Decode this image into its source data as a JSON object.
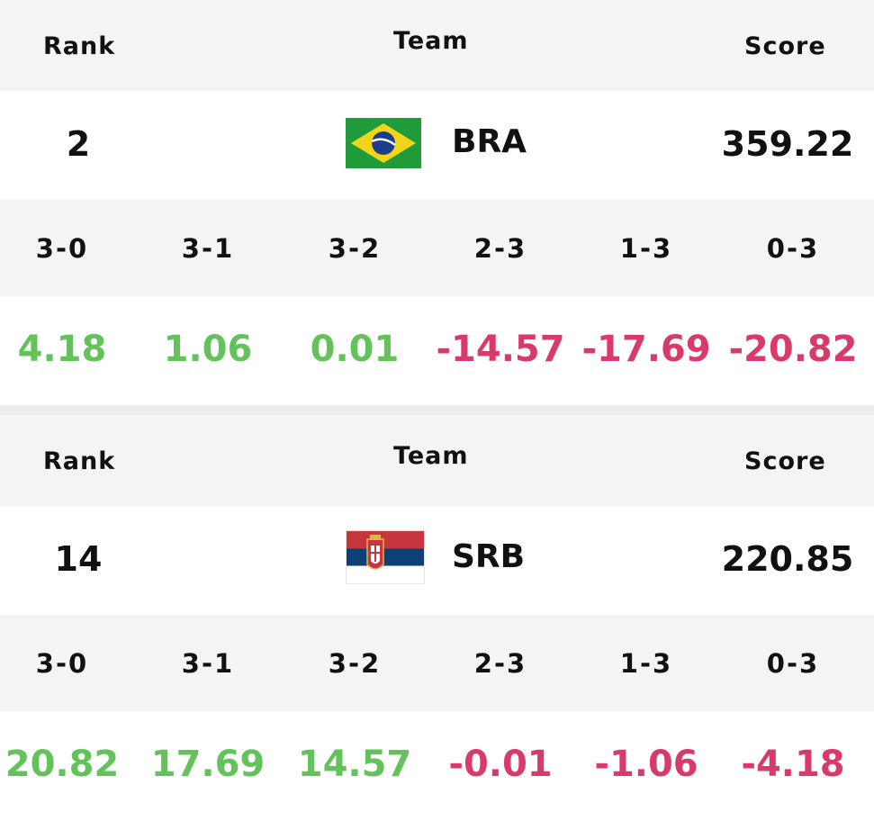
{
  "headers": {
    "rank": "Rank",
    "team": "Team",
    "score": "Score"
  },
  "set_labels": [
    "3-0",
    "3-1",
    "3-2",
    "2-3",
    "1-3",
    "0-3"
  ],
  "colors": {
    "positive": "#63c25a",
    "negative": "#d83b6b",
    "header_bg": "#f4f4f4",
    "text": "#111111"
  },
  "cards": [
    {
      "rank": "2",
      "team": "BRA",
      "flag": "brazil-flag-icon",
      "score": "359.22",
      "set_values": [
        "4.18",
        "1.06",
        "0.01",
        "-14.57",
        "-17.69",
        "-20.82"
      ]
    },
    {
      "rank": "14",
      "team": "SRB",
      "flag": "serbia-flag-icon",
      "score": "220.85",
      "set_values": [
        "20.82",
        "17.69",
        "14.57",
        "-0.01",
        "-1.06",
        "-4.18"
      ]
    }
  ]
}
